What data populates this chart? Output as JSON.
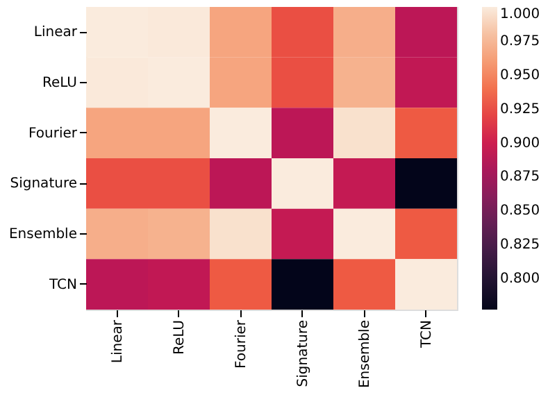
{
  "chart_data": {
    "type": "heatmap",
    "categories": [
      "Linear",
      "ReLU",
      "Fourier",
      "Signature",
      "Ensemble",
      "TCN"
    ],
    "y_categories": [
      "Linear",
      "ReLU",
      "Fourier",
      "Signature",
      "Ensemble",
      "TCN"
    ],
    "cells": [
      [
        1.0,
        0.999,
        0.965,
        0.925,
        0.97,
        0.89
      ],
      [
        0.999,
        1.0,
        0.965,
        0.925,
        0.972,
        0.893
      ],
      [
        0.965,
        0.965,
        1.0,
        0.89,
        0.995,
        0.93
      ],
      [
        0.925,
        0.925,
        0.89,
        1.0,
        0.895,
        0.777
      ],
      [
        0.97,
        0.972,
        0.995,
        0.895,
        1.0,
        0.93
      ],
      [
        0.89,
        0.893,
        0.93,
        0.777,
        0.93,
        1.0
      ]
    ],
    "clim": [
      0.777,
      1.0
    ],
    "cticks": [
      {
        "value": 0.8,
        "label": "0.800"
      },
      0.825,
      {
        "value": 0.85,
        "label": "0.850"
      },
      0.875,
      {
        "value": 0.9,
        "label": "0.900"
      },
      0.925,
      {
        "value": 0.95,
        "label": "0.950"
      },
      0.975,
      {
        "value": 1.0,
        "label": "1.000"
      }
    ]
  }
}
